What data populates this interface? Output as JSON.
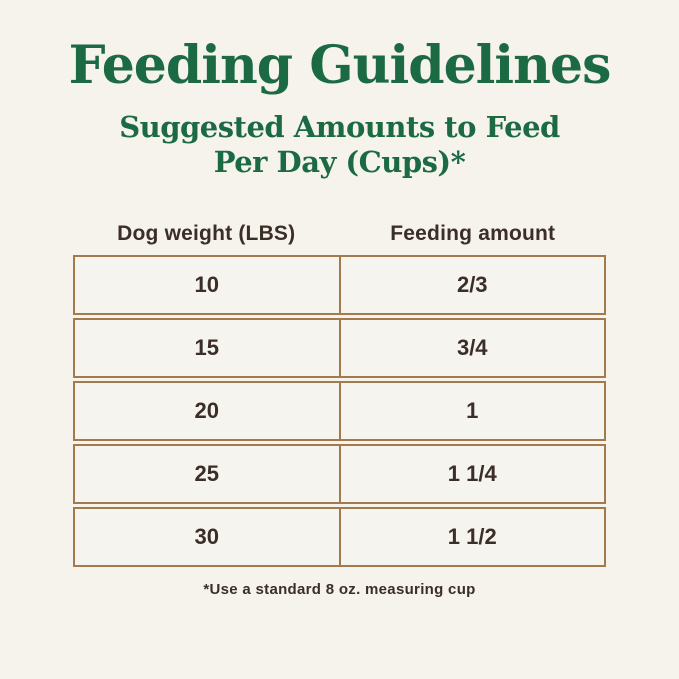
{
  "page": {
    "title": "Feeding Guidelines",
    "subtitle_line1": "Suggested Amounts to Feed",
    "subtitle_line2": "Per Day (Cups)*",
    "footnote": "*Use a standard 8 oz. measuring cup"
  },
  "colors": {
    "background": "#f5f3ec",
    "title_green": "#1c6a44",
    "table_border_brown": "#a37a4e",
    "text_dark": "#3b2d27"
  },
  "table": {
    "headers": [
      "Dog weight (LBS)",
      "Feeding amount"
    ],
    "rows": [
      {
        "weight": "10",
        "amount": "2/3"
      },
      {
        "weight": "15",
        "amount": "3/4"
      },
      {
        "weight": "20",
        "amount": "1"
      },
      {
        "weight": "25",
        "amount": "1 1/4"
      },
      {
        "weight": "30",
        "amount": "1 1/2"
      }
    ]
  },
  "chart_data": {
    "type": "table",
    "title": "Feeding Guidelines",
    "subtitle": "Suggested Amounts to Feed Per Day (Cups)*",
    "columns": [
      "Dog weight (LBS)",
      "Feeding amount"
    ],
    "rows": [
      [
        "10",
        "2/3"
      ],
      [
        "15",
        "3/4"
      ],
      [
        "20",
        "1"
      ],
      [
        "25",
        "1 1/4"
      ],
      [
        "30",
        "1 1/2"
      ]
    ],
    "footnote": "*Use a standard 8 oz. measuring cup",
    "layout": "two-column centered table, header row outside bordered grid, rows drawn as separate bordered boxes with small gaps"
  }
}
